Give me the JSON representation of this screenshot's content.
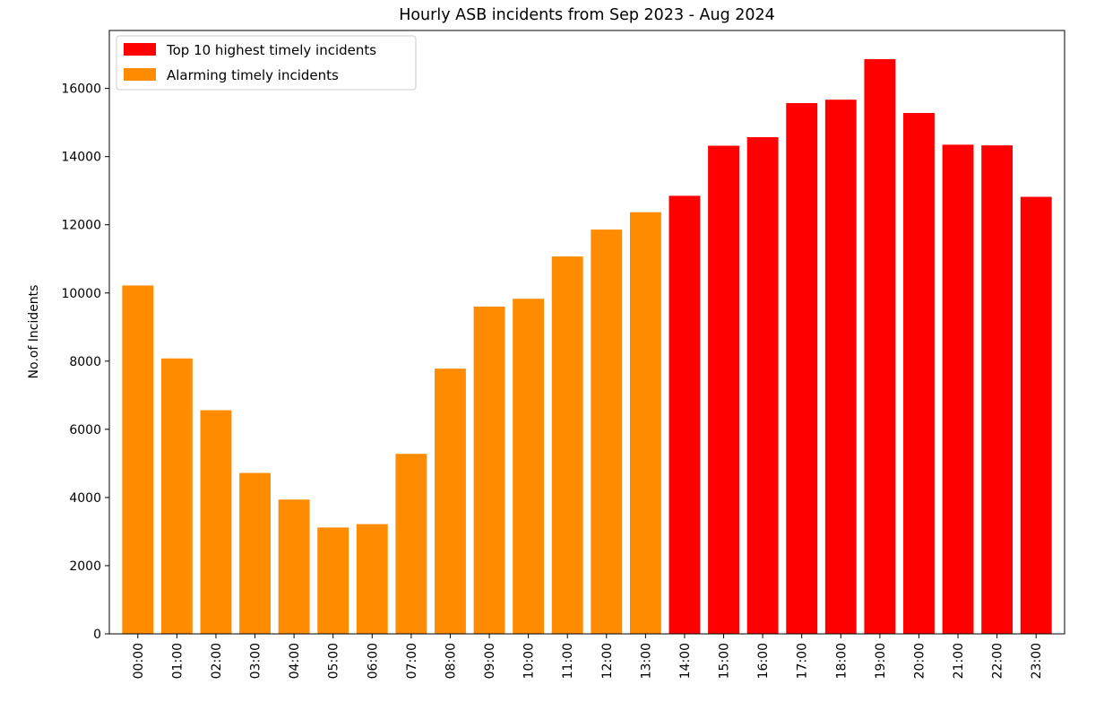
{
  "chart_data": {
    "type": "bar",
    "title": "Hourly ASB incidents from Sep 2023 - Aug 2024",
    "xlabel": "",
    "ylabel": "No.of Incidents",
    "ylim": [
      0,
      17700
    ],
    "yticks": [
      0,
      2000,
      4000,
      6000,
      8000,
      10000,
      12000,
      14000,
      16000
    ],
    "categories": [
      "00:00",
      "01:00",
      "02:00",
      "03:00",
      "04:00",
      "05:00",
      "06:00",
      "07:00",
      "08:00",
      "09:00",
      "10:00",
      "11:00",
      "12:00",
      "13:00",
      "14:00",
      "15:00",
      "16:00",
      "17:00",
      "18:00",
      "19:00",
      "20:00",
      "21:00",
      "22:00",
      "23:00"
    ],
    "values": [
      10220,
      8080,
      6560,
      4720,
      3940,
      3120,
      3220,
      5280,
      7780,
      9600,
      9830,
      11070,
      11860,
      12370,
      12850,
      14320,
      14570,
      15570,
      15670,
      16860,
      15280,
      14350,
      14330,
      12820
    ],
    "groups": [
      "Alarming timely incidents",
      "Alarming timely incidents",
      "Alarming timely incidents",
      "Alarming timely incidents",
      "Alarming timely incidents",
      "Alarming timely incidents",
      "Alarming timely incidents",
      "Alarming timely incidents",
      "Alarming timely incidents",
      "Alarming timely incidents",
      "Alarming timely incidents",
      "Alarming timely incidents",
      "Alarming timely incidents",
      "Alarming timely incidents",
      "Top 10 highest timely incidents",
      "Top 10 highest timely incidents",
      "Top 10 highest timely incidents",
      "Top 10 highest timely incidents",
      "Top 10 highest timely incidents",
      "Top 10 highest timely incidents",
      "Top 10 highest timely incidents",
      "Top 10 highest timely incidents",
      "Top 10 highest timely incidents",
      "Top 10 highest timely incidents"
    ],
    "legend": {
      "position": "top-left",
      "entries": [
        {
          "label": "Top 10 highest timely incidents",
          "color": "#ff0000"
        },
        {
          "label": "Alarming timely incidents",
          "color": "#ff8c00"
        }
      ]
    },
    "colors": {
      "Top 10 highest timely incidents": "#ff0000",
      "Alarming timely incidents": "#ff8c00"
    },
    "grid": false
  }
}
